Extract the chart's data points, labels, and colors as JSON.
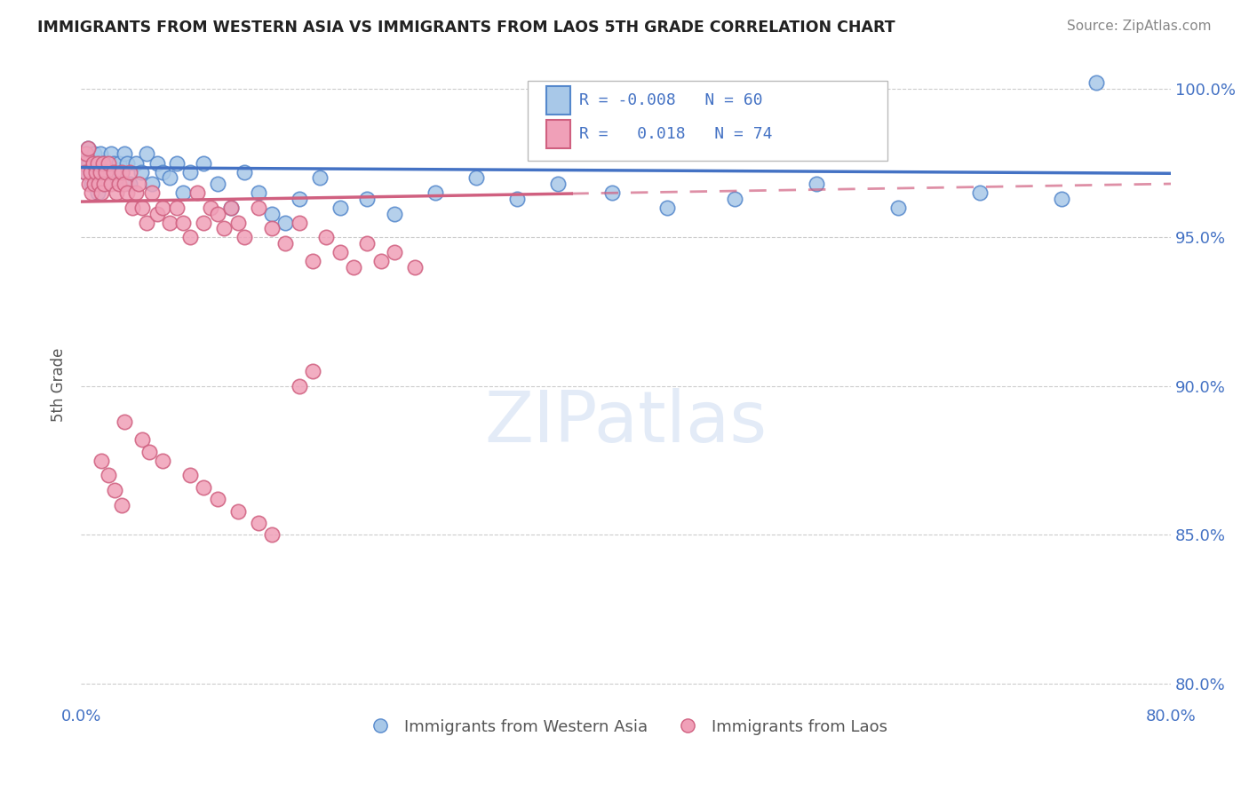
{
  "title": "IMMIGRANTS FROM WESTERN ASIA VS IMMIGRANTS FROM LAOS 5TH GRADE CORRELATION CHART",
  "source": "Source: ZipAtlas.com",
  "ylabel": "5th Grade",
  "xlim": [
    0.0,
    0.8
  ],
  "ylim": [
    0.793,
    1.008
  ],
  "ytick_positions": [
    0.8,
    0.85,
    0.9,
    0.95,
    1.0
  ],
  "r_blue": -0.008,
  "n_blue": 60,
  "r_pink": 0.018,
  "n_pink": 74,
  "legend_labels": [
    "Immigrants from Western Asia",
    "Immigrants from Laos"
  ],
  "blue_color": "#A8C8E8",
  "pink_color": "#F0A0B8",
  "blue_edge_color": "#5588CC",
  "pink_edge_color": "#D06080",
  "blue_line_color": "#4472C4",
  "pink_line_color": "#D06080",
  "background_color": "#FFFFFF",
  "grid_color": "#CCCCCC",
  "title_color": "#222222",
  "axis_label_color": "#4472C4",
  "blue_x": [
    0.002,
    0.003,
    0.004,
    0.005,
    0.006,
    0.007,
    0.008,
    0.009,
    0.01,
    0.011,
    0.012,
    0.013,
    0.014,
    0.015,
    0.016,
    0.017,
    0.018,
    0.02,
    0.022,
    0.024,
    0.026,
    0.028,
    0.03,
    0.032,
    0.034,
    0.036,
    0.04,
    0.044,
    0.048,
    0.052,
    0.056,
    0.06,
    0.065,
    0.07,
    0.075,
    0.08,
    0.09,
    0.1,
    0.11,
    0.12,
    0.13,
    0.14,
    0.15,
    0.16,
    0.175,
    0.19,
    0.21,
    0.23,
    0.26,
    0.29,
    0.32,
    0.35,
    0.39,
    0.43,
    0.48,
    0.54,
    0.6,
    0.66,
    0.72,
    0.745
  ],
  "blue_y": [
    0.975,
    0.972,
    0.978,
    0.98,
    0.975,
    0.972,
    0.968,
    0.975,
    0.978,
    0.97,
    0.965,
    0.975,
    0.978,
    0.972,
    0.975,
    0.968,
    0.975,
    0.972,
    0.978,
    0.975,
    0.97,
    0.975,
    0.972,
    0.978,
    0.975,
    0.968,
    0.975,
    0.972,
    0.978,
    0.968,
    0.975,
    0.972,
    0.97,
    0.975,
    0.965,
    0.972,
    0.975,
    0.968,
    0.96,
    0.972,
    0.965,
    0.958,
    0.955,
    0.963,
    0.97,
    0.96,
    0.963,
    0.958,
    0.965,
    0.97,
    0.963,
    0.968,
    0.965,
    0.96,
    0.963,
    0.968,
    0.96,
    0.965,
    0.963,
    1.002
  ],
  "pink_x": [
    0.002,
    0.003,
    0.004,
    0.005,
    0.006,
    0.007,
    0.008,
    0.009,
    0.01,
    0.011,
    0.012,
    0.013,
    0.014,
    0.015,
    0.016,
    0.017,
    0.018,
    0.02,
    0.022,
    0.024,
    0.026,
    0.028,
    0.03,
    0.032,
    0.034,
    0.036,
    0.038,
    0.04,
    0.042,
    0.045,
    0.048,
    0.052,
    0.056,
    0.06,
    0.065,
    0.07,
    0.075,
    0.08,
    0.085,
    0.09,
    0.095,
    0.1,
    0.105,
    0.11,
    0.115,
    0.12,
    0.13,
    0.14,
    0.15,
    0.16,
    0.17,
    0.18,
    0.19,
    0.2,
    0.21,
    0.22,
    0.23,
    0.245,
    0.16,
    0.17,
    0.032,
    0.045,
    0.05,
    0.06,
    0.08,
    0.09,
    0.1,
    0.115,
    0.13,
    0.14,
    0.015,
    0.02,
    0.025,
    0.03
  ],
  "pink_y": [
    0.975,
    0.972,
    0.978,
    0.98,
    0.968,
    0.972,
    0.965,
    0.975,
    0.968,
    0.972,
    0.975,
    0.968,
    0.972,
    0.965,
    0.975,
    0.968,
    0.972,
    0.975,
    0.968,
    0.972,
    0.965,
    0.968,
    0.972,
    0.968,
    0.965,
    0.972,
    0.96,
    0.965,
    0.968,
    0.96,
    0.955,
    0.965,
    0.958,
    0.96,
    0.955,
    0.96,
    0.955,
    0.95,
    0.965,
    0.955,
    0.96,
    0.958,
    0.953,
    0.96,
    0.955,
    0.95,
    0.96,
    0.953,
    0.948,
    0.955,
    0.942,
    0.95,
    0.945,
    0.94,
    0.948,
    0.942,
    0.945,
    0.94,
    0.9,
    0.905,
    0.888,
    0.882,
    0.878,
    0.875,
    0.87,
    0.866,
    0.862,
    0.858,
    0.854,
    0.85,
    0.875,
    0.87,
    0.865,
    0.86
  ]
}
